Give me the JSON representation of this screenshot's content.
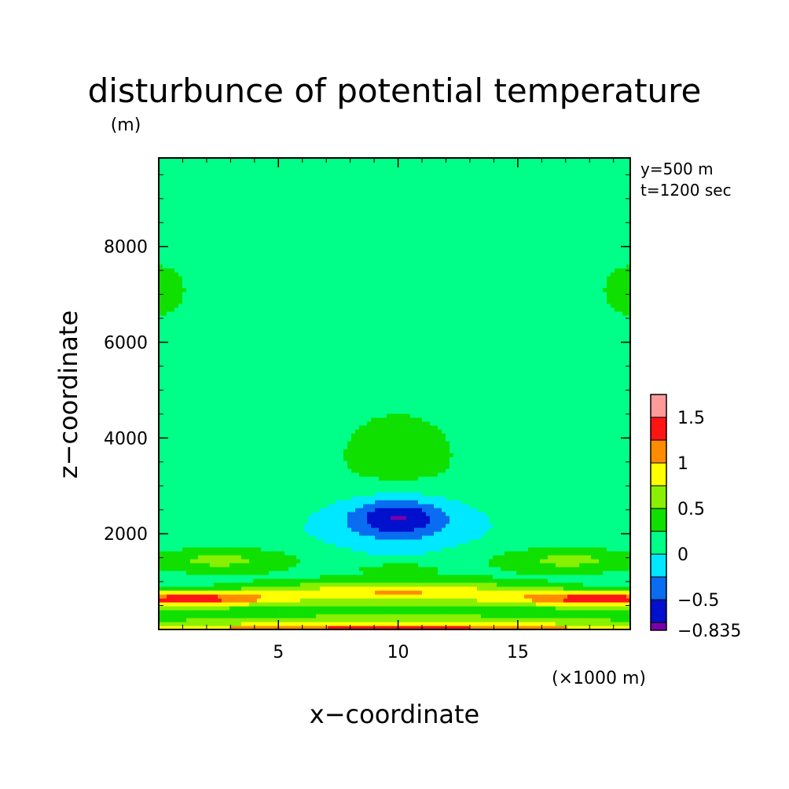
{
  "chart_data": {
    "type": "heatmap",
    "title": "disturbunce of potential temperature",
    "ylabel": "z−coordinate",
    "yunit": "(m)",
    "xlabel": "x−coordinate",
    "xunit": "(×1000 m)",
    "annotations": [
      "y=500 m",
      "t=1200 sec"
    ],
    "xlim": [
      0,
      19.7
    ],
    "ylim": [
      0,
      9850
    ],
    "xticks": [
      5,
      10,
      15
    ],
    "xtick_labels": [
      "5",
      "10",
      "15"
    ],
    "yticks": [
      2000,
      4000,
      6000,
      8000
    ],
    "ytick_labels": [
      "2000",
      "4000",
      "6000",
      "8000"
    ],
    "grid": false,
    "legend": "colorbar right",
    "colorbar": {
      "levels": [
        -0.835,
        -0.75,
        -0.5,
        -0.25,
        0,
        0.25,
        0.5,
        0.75,
        1,
        1.25,
        1.5,
        1.75
      ],
      "tick_values": [
        -0.835,
        -0.5,
        0,
        0.5,
        1,
        1.5
      ],
      "tick_labels": [
        "−0.835",
        "−0.5",
        "0",
        "0.5",
        "1",
        "1.5"
      ],
      "colors": [
        "#7a00a8",
        "#0010cc",
        "#0a6cf0",
        "#00e8ff",
        "#00ff88",
        "#10e000",
        "#88f000",
        "#ffff00",
        "#ff8c00",
        "#ff1414",
        "#ff9a9a"
      ]
    },
    "field": "theta'(x,z) ≈ −0.7·G((x−10)/2.3,(z−2300)/450) + 0.3·G(x−0 or 20, z−7200) + boundary layer 1.6 near z=0 and 1.3 at z≈800; contour fill between levels"
  }
}
